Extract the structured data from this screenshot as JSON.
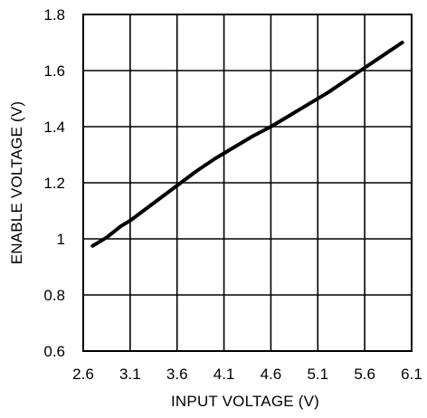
{
  "chart_data": {
    "type": "line",
    "title": "",
    "xlabel": "INPUT VOLTAGE (V)",
    "ylabel": "ENABLE VOLTAGE (V)",
    "xlim": [
      2.6,
      6.1
    ],
    "ylim": [
      0.6,
      1.8
    ],
    "xticks": [
      2.6,
      3.1,
      3.6,
      4.1,
      4.6,
      5.1,
      5.6,
      6.1
    ],
    "yticks": [
      0.6,
      0.8,
      1.0,
      1.2,
      1.4,
      1.6,
      1.8
    ],
    "x_tick_labels": [
      "2.6",
      "3.1",
      "3.6",
      "4.1",
      "4.6",
      "5.1",
      "5.6",
      "6.1"
    ],
    "y_tick_labels": [
      "0.6",
      "0.8",
      "1",
      "1.2",
      "1.4",
      "1.6",
      "1.8"
    ],
    "grid": true,
    "series": [
      {
        "x": [
          2.7,
          2.85,
          3.0,
          3.1,
          3.2,
          3.4,
          3.6,
          3.8,
          4.0,
          4.2,
          4.4,
          4.6,
          4.8,
          5.0,
          5.2,
          5.4,
          5.6,
          5.8,
          6.0
        ],
        "y": [
          0.975,
          1.005,
          1.045,
          1.065,
          1.09,
          1.14,
          1.19,
          1.24,
          1.285,
          1.325,
          1.365,
          1.4,
          1.44,
          1.48,
          1.52,
          1.565,
          1.61,
          1.655,
          1.7
        ]
      }
    ],
    "colors": {
      "line": "#000000",
      "grid": "#000000",
      "background": "#ffffff"
    }
  }
}
